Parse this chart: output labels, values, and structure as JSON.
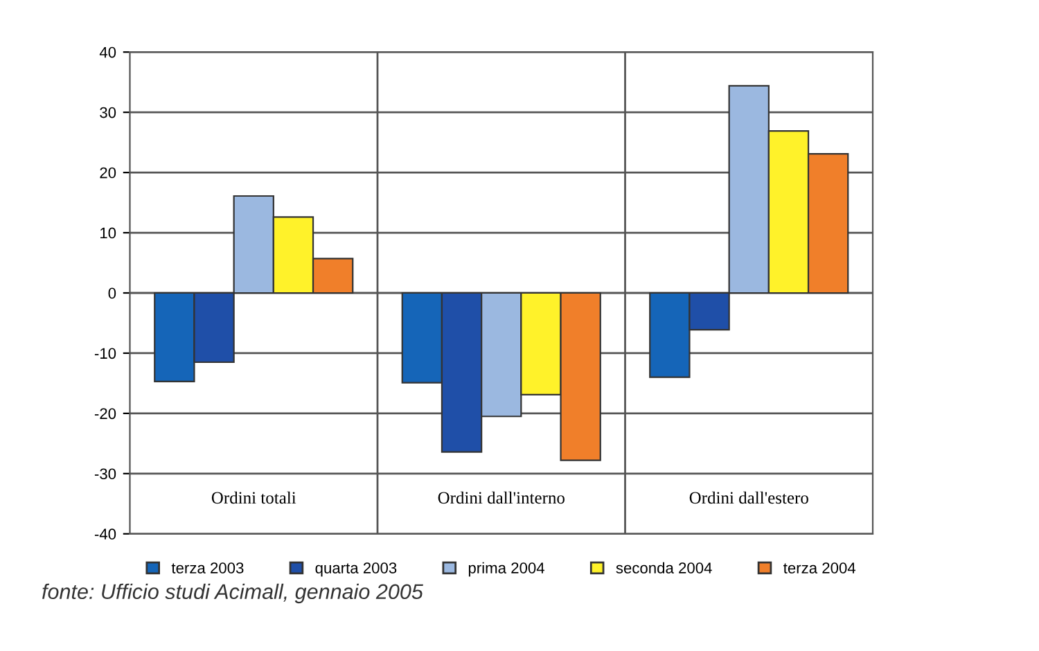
{
  "chart_data": {
    "type": "bar",
    "categories": [
      "Ordini totali",
      "Ordini dall'interno",
      "Ordini dall'estero"
    ],
    "series": [
      {
        "name": "terza 2003",
        "color": "#1565b8",
        "values": [
          -14.7,
          -14.9,
          -14.0
        ]
      },
      {
        "name": "quarta 2003",
        "color": "#1f4fa8",
        "values": [
          -11.5,
          -26.4,
          -6.1
        ]
      },
      {
        "name": "prima 2004",
        "color": "#9bb8e0",
        "values": [
          16.1,
          -20.5,
          34.4
        ]
      },
      {
        "name": "seconda 2004",
        "color": "#fff22a",
        "values": [
          12.6,
          -16.9,
          26.9
        ]
      },
      {
        "name": "terza 2004",
        "color": "#f07f2a",
        "values": [
          5.7,
          -27.8,
          23.1
        ]
      }
    ],
    "ylim": [
      -40,
      40
    ],
    "yticks": [
      -40,
      -30,
      -20,
      -10,
      0,
      10,
      20,
      30,
      40
    ],
    "grid": "y",
    "legend": "bottom",
    "annotations": [
      "fonte: Ufficio studi Acimall, gennaio 2005"
    ]
  }
}
